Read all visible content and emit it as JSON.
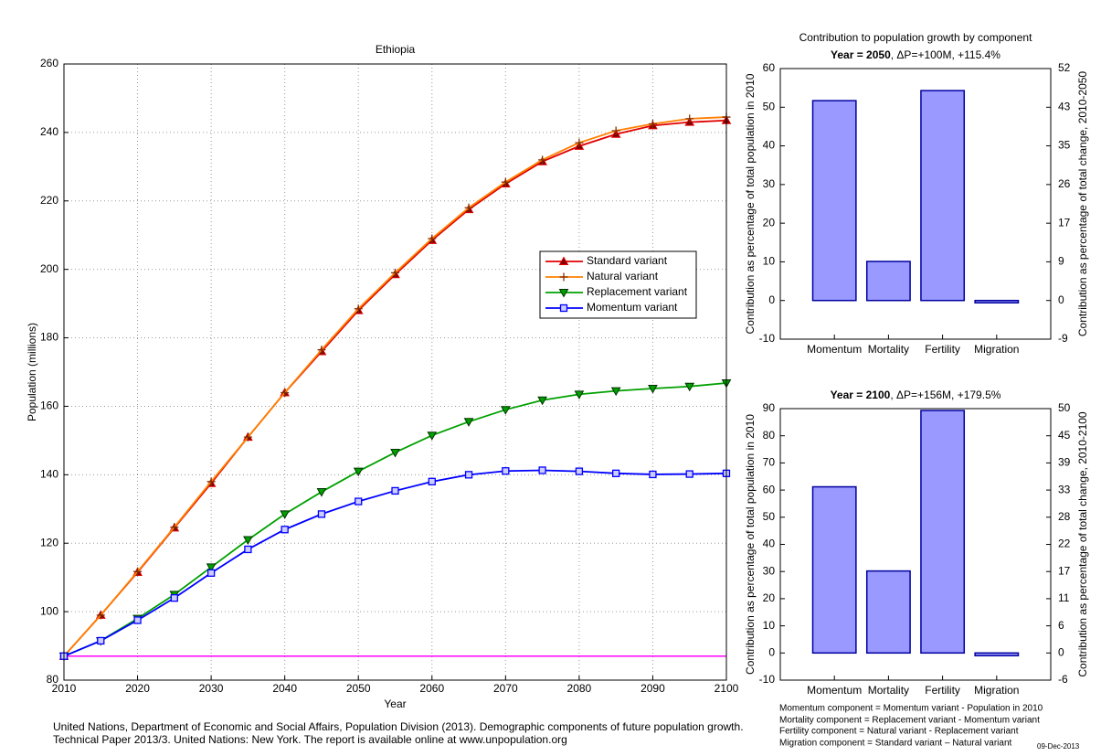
{
  "chart_data": [
    {
      "type": "line",
      "title": "Ethiopia",
      "x_label": "Year",
      "y_label": "Population (millions)",
      "x": [
        2010,
        2015,
        2020,
        2025,
        2030,
        2035,
        2040,
        2045,
        2050,
        2055,
        2060,
        2065,
        2070,
        2075,
        2080,
        2085,
        2090,
        2095,
        2100
      ],
      "xlim": [
        2010,
        2100
      ],
      "xticks": [
        2010,
        2020,
        2030,
        2040,
        2050,
        2060,
        2070,
        2080,
        2090,
        2100
      ],
      "ylim": [
        80,
        260
      ],
      "yticks": [
        80,
        100,
        120,
        140,
        160,
        180,
        200,
        220,
        240,
        260
      ],
      "grid": true,
      "legend": "right",
      "hline": {
        "value": 87,
        "color": "#ff00ff"
      },
      "series": [
        {
          "name": "Standard variant",
          "color": "#e00000",
          "marker": "triangle-up",
          "values": [
            87,
            99,
            111.5,
            124.5,
            137.5,
            151,
            164,
            176,
            188,
            198.5,
            208.5,
            217.5,
            225,
            231.5,
            236,
            239.5,
            242,
            243,
            243.5
          ]
        },
        {
          "name": "Natural variant",
          "color": "#ff8000",
          "marker": "plus",
          "values": [
            87,
            99,
            111.7,
            124.7,
            138,
            151,
            164,
            176.5,
            188.5,
            199,
            209,
            218,
            225.5,
            232,
            237,
            240.5,
            242.5,
            244,
            244.5
          ]
        },
        {
          "name": "Replacement variant",
          "color": "#00a000",
          "marker": "triangle-down",
          "values": [
            87,
            91.5,
            98,
            105,
            113,
            121,
            128.5,
            135,
            141,
            146.5,
            151.5,
            155.5,
            159,
            161.8,
            163.5,
            164.5,
            165.2,
            165.8,
            166.8
          ]
        },
        {
          "name": "Momentum variant",
          "color": "#0000ff",
          "marker": "square",
          "values": [
            87,
            91.5,
            97.5,
            104,
            111.3,
            118.2,
            124,
            128.5,
            132.2,
            135.3,
            138,
            140,
            141.1,
            141.3,
            141,
            140.4,
            140.1,
            140.2,
            140.4
          ]
        }
      ]
    },
    {
      "type": "bar",
      "title": "Contribution to population growth by component",
      "subtitle_bold": "Year = 2050",
      "subtitle": ", ΔP=+100M, +115.4%",
      "y_label": "Contribution as percentage of total population in 2010",
      "y2_label": "Contribution as percentage of total change, 2010-2050",
      "categories": [
        "Momentum",
        "Mortality",
        "Fertility",
        "Migration"
      ],
      "values": [
        51.7,
        10.1,
        54.3,
        -0.6
      ],
      "color": "#9999ff",
      "edge_color": "#0000a0",
      "ylim": [
        -10,
        60
      ],
      "yticks": [
        -10,
        0,
        10,
        20,
        30,
        40,
        50,
        60
      ],
      "y2lim": [
        -8.67,
        52
      ],
      "y2ticks": [
        {
          "value": -8.67,
          "label": "-9"
        },
        0,
        {
          "value": 8.67,
          "label": "9"
        },
        {
          "value": 17.33,
          "label": "17"
        },
        26,
        {
          "value": 34.67,
          "label": "35"
        },
        {
          "value": 43.33,
          "label": "43"
        },
        52
      ]
    },
    {
      "type": "bar",
      "subtitle_bold": "Year = 2100",
      "subtitle": ", ΔP=+156M, +179.5%",
      "y_label": "Contribution as percentage of total population in 2010",
      "y2_label": "Contribution as percentage of total change, 2010-2100",
      "categories": [
        "Momentum",
        "Mortality",
        "Fertility",
        "Migration"
      ],
      "values": [
        61.2,
        30.2,
        89.3,
        -1.0
      ],
      "color": "#9999ff",
      "edge_color": "#0000a0",
      "ylim": [
        -10,
        90
      ],
      "yticks": [
        -10,
        0,
        10,
        20,
        30,
        40,
        50,
        60,
        70,
        80,
        90
      ],
      "y2lim": [
        -5.57,
        50.14
      ],
      "y2ticks": [
        {
          "value": -5.57,
          "label": "-6"
        },
        0,
        {
          "value": 5.57,
          "label": "6"
        },
        {
          "value": 11.14,
          "label": "11"
        },
        {
          "value": 16.71,
          "label": "17"
        },
        {
          "value": 22.28,
          "label": "22"
        },
        {
          "value": 27.86,
          "label": "28"
        },
        {
          "value": 33.43,
          "label": "33"
        },
        {
          "value": 39.0,
          "label": "39"
        },
        {
          "value": 44.57,
          "label": "45"
        },
        {
          "value": 50.14,
          "label": "50"
        }
      ]
    }
  ],
  "footer": {
    "citation": [
      "United Nations, Department of Economic and Social Affairs, Population Division (2013). Demographic components of future population growth.",
      "Technical Paper 2013/3. United Nations: New York. The report is available online at www.unpopulation.org"
    ],
    "notes": [
      "Momentum component = Momentum variant - Population in 2010",
      "Mortality component = Replacement variant - Momentum variant",
      "Fertility component = Natural variant - Replacement variant",
      "Migration component = Standard variant – Natural variant"
    ],
    "date": "09-Dec-2013"
  }
}
